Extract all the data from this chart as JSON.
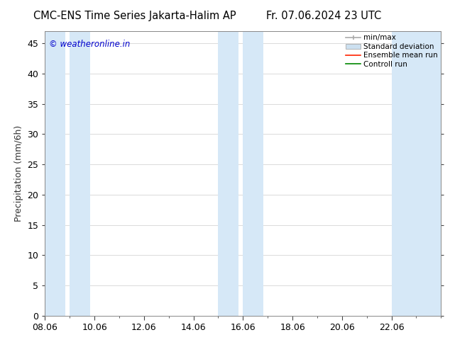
{
  "title": "CMC-ENS Time Series Jakarta-Halim AP",
  "title_right": "Fr. 07.06.2024 23 UTC",
  "ylabel": "Precipitation (mm/6h)",
  "watermark": "© weatheronline.in",
  "watermark_color": "#0000cc",
  "bg_color": "#ffffff",
  "plot_bg_color": "#ffffff",
  "ylim": [
    0,
    47
  ],
  "yticks": [
    0,
    5,
    10,
    15,
    20,
    25,
    30,
    35,
    40,
    45
  ],
  "xtick_labels": [
    "08.06",
    "10.06",
    "12.06",
    "14.06",
    "16.06",
    "18.06",
    "20.06",
    "22.06"
  ],
  "xtick_positions": [
    8,
    10,
    12,
    14,
    16,
    18,
    20,
    22
  ],
  "xlim": [
    8,
    24
  ],
  "shaded_bands": [
    {
      "x_start": 8.0,
      "x_end": 8.83
    },
    {
      "x_start": 9.0,
      "x_end": 9.83
    },
    {
      "x_start": 15.0,
      "x_end": 15.83
    },
    {
      "x_start": 16.0,
      "x_end": 16.83
    },
    {
      "x_start": 22.0,
      "x_end": 24.0
    }
  ],
  "band_color": "#d6e8f7",
  "legend_labels": [
    "min/max",
    "Standard deviation",
    "Ensemble mean run",
    "Controll run"
  ],
  "grid_color": "#cccccc",
  "tick_color": "#444444",
  "font_size": 9,
  "title_font_size": 10.5
}
